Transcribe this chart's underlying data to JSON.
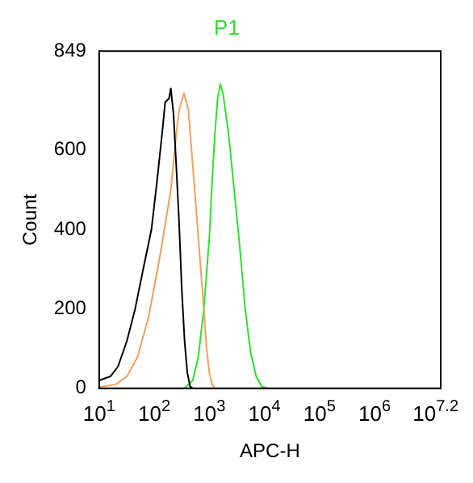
{
  "chart_data": {
    "type": "line",
    "title": "P1",
    "xlabel": "APC-H",
    "ylabel": "Count",
    "log": "x",
    "legend": false,
    "grid": false,
    "marker": "none",
    "xlim": [
      10,
      15848932
    ],
    "xticks": [
      {
        "value": 10,
        "label": "10$^{1}$"
      },
      {
        "value": 100,
        "label": "10$^{2}$"
      },
      {
        "value": 1000,
        "label": "10$^{3}$"
      },
      {
        "value": 10000,
        "label": "10$^{4}$"
      },
      {
        "value": 100000,
        "label": "10$^{5}$"
      },
      {
        "value": 1000000,
        "label": "10$^{6}$"
      },
      {
        "value": 15848932,
        "label": "10$^{7.2}$"
      }
    ],
    "ylim": [
      0,
      849
    ],
    "yticks": [
      0,
      200,
      400,
      600,
      849
    ],
    "series": [
      {
        "color": "#000000",
        "x": [
          10,
          16,
          22,
          32,
          45,
          63,
          89,
          112,
          141,
          158,
          186,
          200,
          224,
          251,
          282,
          316,
          355,
          398,
          447,
          501
        ],
        "values": [
          20,
          30,
          55,
          120,
          200,
          300,
          400,
          520,
          650,
          720,
          730,
          755,
          690,
          560,
          420,
          250,
          120,
          40,
          5,
          0
        ]
      },
      {
        "color": "#f0a060",
        "x": [
          10,
          20,
          32,
          50,
          79,
          126,
          200,
          251,
          282,
          347,
          417,
          501,
          631,
          794,
          891,
          1000,
          1122,
          1259
        ],
        "values": [
          3,
          10,
          30,
          80,
          180,
          330,
          500,
          640,
          700,
          743,
          700,
          560,
          380,
          200,
          100,
          40,
          10,
          0
        ]
      },
      {
        "color": "#33dd33",
        "x": [
          355,
          501,
          631,
          794,
          1000,
          1122,
          1259,
          1413,
          1585,
          1778,
          2239,
          2818,
          3548,
          4467,
          5623,
          7079,
          8913,
          11220
        ],
        "values": [
          0,
          20,
          80,
          200,
          380,
          520,
          640,
          730,
          766,
          740,
          640,
          500,
          360,
          200,
          90,
          30,
          5,
          0
        ]
      }
    ]
  }
}
